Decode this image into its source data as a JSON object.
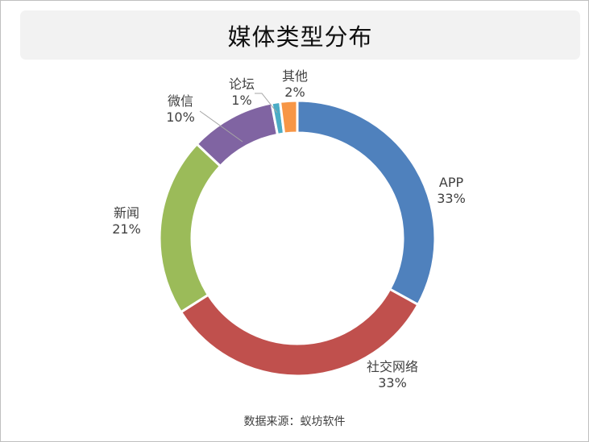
{
  "chart_data": {
    "type": "pie",
    "title": "媒体类型分布",
    "categories": [
      "APP",
      "社交网络",
      "新闻",
      "微信",
      "论坛",
      "其他"
    ],
    "values": [
      33,
      33,
      21,
      10,
      1,
      2
    ],
    "value_labels": [
      "33%",
      "33%",
      "21%",
      "10%",
      "1%",
      "2%"
    ],
    "colors": [
      "#4f81bd",
      "#c0504d",
      "#9bbb59",
      "#8064a2",
      "#4bacc6",
      "#f79646"
    ],
    "donut": true,
    "legend": "none",
    "labels": "outside with leader lines"
  },
  "source": "数据来源：蚁坊软件"
}
